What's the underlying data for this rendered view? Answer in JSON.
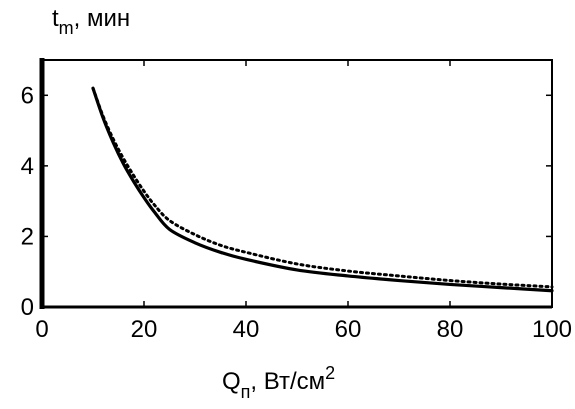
{
  "chart_data": {
    "type": "line",
    "ylabel": "t",
    "ylabel_sub": "m",
    "ylabel_unit": ", мин",
    "xlabel": "Q",
    "xlabel_sub": "п",
    "xlabel_unit": ", Вт/см",
    "xlabel_sup": "2",
    "xlim": [
      0,
      100
    ],
    "ylim": [
      0,
      7
    ],
    "xticks": [
      0,
      20,
      40,
      60,
      80,
      100
    ],
    "yticks": [
      0,
      2,
      4,
      6
    ],
    "grid": false,
    "series": [
      {
        "style": "solid",
        "color": "#000000",
        "x": [
          10,
          12,
          14,
          16,
          18,
          20,
          22,
          25,
          30,
          35,
          40,
          50,
          60,
          70,
          80,
          90,
          100
        ],
        "y": [
          6.2,
          5.35,
          4.65,
          4.05,
          3.55,
          3.1,
          2.7,
          2.2,
          1.82,
          1.55,
          1.35,
          1.05,
          0.88,
          0.75,
          0.64,
          0.55,
          0.46
        ]
      },
      {
        "style": "dotted",
        "color": "#000000",
        "x": [
          10,
          12,
          14,
          16,
          18,
          20,
          22,
          25,
          30,
          35,
          40,
          50,
          60,
          70,
          80,
          90,
          100
        ],
        "y": [
          6.2,
          5.4,
          4.75,
          4.2,
          3.72,
          3.28,
          2.9,
          2.45,
          2.05,
          1.75,
          1.55,
          1.22,
          1.02,
          0.88,
          0.75,
          0.65,
          0.57
        ]
      }
    ]
  }
}
